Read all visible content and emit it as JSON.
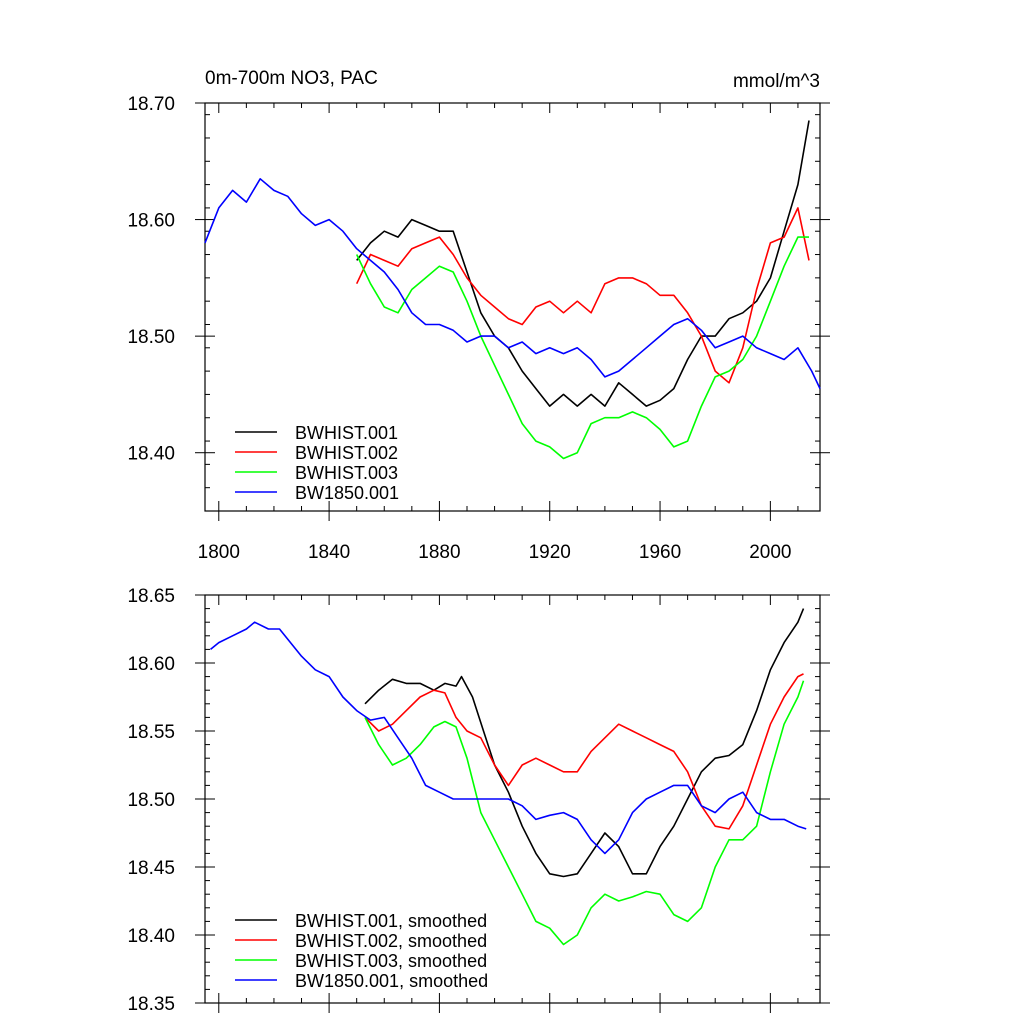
{
  "chart_data": [
    {
      "type": "line",
      "title": "0m-700m NO3, PAC",
      "units": "mmol/m^3",
      "xlim": [
        1795,
        2018
      ],
      "ylim": [
        18.35,
        18.7
      ],
      "x_ticks": [
        1800,
        1840,
        1880,
        1920,
        1960,
        2000
      ],
      "x_tick_labels": [
        "1800",
        "1840",
        "1880",
        "1920",
        "1960",
        "2000"
      ],
      "y_ticks": [
        18.4,
        18.5,
        18.6,
        18.7
      ],
      "y_tick_labels": [
        "18.40",
        "18.50",
        "18.60",
        "18.70"
      ],
      "legend_position": "bottom-left",
      "series": [
        {
          "name": "BWHIST.001",
          "color": "#000000",
          "x": [
            1850,
            1855,
            1860,
            1865,
            1870,
            1875,
            1880,
            1885,
            1890,
            1895,
            1900,
            1905,
            1910,
            1915,
            1920,
            1925,
            1930,
            1935,
            1940,
            1945,
            1950,
            1955,
            1960,
            1965,
            1970,
            1975,
            1980,
            1985,
            1990,
            1995,
            2000,
            2005,
            2010,
            2014
          ],
          "y": [
            18.565,
            18.58,
            18.59,
            18.585,
            18.6,
            18.595,
            18.59,
            18.59,
            18.555,
            18.52,
            18.5,
            18.49,
            18.47,
            18.455,
            18.44,
            18.45,
            18.44,
            18.45,
            18.44,
            18.46,
            18.45,
            18.44,
            18.445,
            18.455,
            18.48,
            18.5,
            18.5,
            18.515,
            18.52,
            18.53,
            18.55,
            18.59,
            18.63,
            18.685
          ]
        },
        {
          "name": "BWHIST.002",
          "color": "#ff0000",
          "x": [
            1850,
            1855,
            1860,
            1865,
            1870,
            1875,
            1880,
            1885,
            1890,
            1895,
            1900,
            1905,
            1910,
            1915,
            1920,
            1925,
            1930,
            1935,
            1940,
            1945,
            1950,
            1955,
            1960,
            1965,
            1970,
            1975,
            1980,
            1985,
            1990,
            1995,
            2000,
            2005,
            2010,
            2014
          ],
          "y": [
            18.545,
            18.57,
            18.565,
            18.56,
            18.575,
            18.58,
            18.585,
            18.57,
            18.55,
            18.535,
            18.525,
            18.515,
            18.51,
            18.525,
            18.53,
            18.52,
            18.53,
            18.52,
            18.545,
            18.55,
            18.55,
            18.545,
            18.535,
            18.535,
            18.52,
            18.5,
            18.47,
            18.46,
            18.49,
            18.54,
            18.58,
            18.585,
            18.61,
            18.565
          ]
        },
        {
          "name": "BWHIST.003",
          "color": "#00ff00",
          "x": [
            1850,
            1855,
            1860,
            1865,
            1870,
            1875,
            1880,
            1885,
            1890,
            1895,
            1900,
            1905,
            1910,
            1915,
            1920,
            1925,
            1930,
            1935,
            1940,
            1945,
            1950,
            1955,
            1960,
            1965,
            1970,
            1975,
            1980,
            1985,
            1990,
            1995,
            2000,
            2005,
            2010,
            2014
          ],
          "y": [
            18.57,
            18.545,
            18.525,
            18.52,
            18.54,
            18.55,
            18.56,
            18.555,
            18.53,
            18.5,
            18.475,
            18.45,
            18.425,
            18.41,
            18.405,
            18.395,
            18.4,
            18.425,
            18.43,
            18.43,
            18.435,
            18.43,
            18.42,
            18.405,
            18.41,
            18.44,
            18.465,
            18.47,
            18.48,
            18.5,
            18.53,
            18.56,
            18.585,
            18.585
          ]
        },
        {
          "name": "BW1850.001",
          "color": "#0000ff",
          "x": [
            1795,
            1800,
            1805,
            1810,
            1815,
            1820,
            1825,
            1830,
            1835,
            1840,
            1845,
            1850,
            1855,
            1860,
            1865,
            1870,
            1875,
            1880,
            1885,
            1890,
            1895,
            1900,
            1905,
            1910,
            1915,
            1920,
            1925,
            1930,
            1935,
            1940,
            1945,
            1950,
            1955,
            1960,
            1965,
            1970,
            1975,
            1980,
            1985,
            1990,
            1995,
            2000,
            2005,
            2010,
            2015,
            2018
          ],
          "y": [
            18.58,
            18.61,
            18.625,
            18.615,
            18.635,
            18.625,
            18.62,
            18.605,
            18.595,
            18.6,
            18.59,
            18.575,
            18.565,
            18.555,
            18.54,
            18.52,
            18.51,
            18.51,
            18.505,
            18.495,
            18.5,
            18.5,
            18.49,
            18.495,
            18.485,
            18.49,
            18.485,
            18.49,
            18.48,
            18.465,
            18.47,
            18.48,
            18.49,
            18.5,
            18.51,
            18.515,
            18.505,
            18.49,
            18.495,
            18.5,
            18.49,
            18.485,
            18.48,
            18.49,
            18.47,
            18.455
          ]
        }
      ]
    },
    {
      "type": "line",
      "xlim": [
        1795,
        2018
      ],
      "ylim": [
        18.35,
        18.65
      ],
      "x_ticks": [
        1800,
        1840,
        1880,
        1920,
        1960,
        2000
      ],
      "y_ticks": [
        18.35,
        18.4,
        18.45,
        18.5,
        18.55,
        18.6,
        18.65
      ],
      "y_tick_labels": [
        "18.35",
        "18.40",
        "18.45",
        "18.50",
        "18.55",
        "18.60",
        "18.65"
      ],
      "legend_position": "bottom-left",
      "series": [
        {
          "name": "BWHIST.001, smoothed",
          "color": "#000000",
          "x": [
            1853,
            1858,
            1863,
            1868,
            1873,
            1878,
            1882,
            1886,
            1888,
            1892,
            1896,
            1900,
            1905,
            1910,
            1915,
            1920,
            1925,
            1930,
            1935,
            1940,
            1945,
            1950,
            1955,
            1960,
            1965,
            1970,
            1975,
            1980,
            1985,
            1990,
            1995,
            2000,
            2005,
            2010,
            2012
          ],
          "y": [
            18.57,
            18.58,
            18.588,
            18.585,
            18.585,
            18.58,
            18.585,
            18.583,
            18.59,
            18.575,
            18.55,
            18.525,
            18.505,
            18.48,
            18.46,
            18.445,
            18.443,
            18.445,
            18.46,
            18.475,
            18.465,
            18.445,
            18.445,
            18.465,
            18.48,
            18.5,
            18.52,
            18.53,
            18.532,
            18.54,
            18.565,
            18.595,
            18.615,
            18.63,
            18.64
          ]
        },
        {
          "name": "BWHIST.002, smoothed",
          "color": "#ff0000",
          "x": [
            1853,
            1858,
            1863,
            1868,
            1873,
            1878,
            1882,
            1886,
            1890,
            1895,
            1900,
            1905,
            1910,
            1915,
            1920,
            1925,
            1930,
            1935,
            1940,
            1945,
            1950,
            1955,
            1960,
            1965,
            1970,
            1975,
            1980,
            1985,
            1990,
            1995,
            2000,
            2005,
            2010,
            2012
          ],
          "y": [
            18.56,
            18.55,
            18.555,
            18.565,
            18.575,
            18.58,
            18.578,
            18.56,
            18.55,
            18.545,
            18.525,
            18.51,
            18.525,
            18.53,
            18.525,
            18.52,
            18.52,
            18.535,
            18.545,
            18.555,
            18.55,
            18.545,
            18.54,
            18.535,
            18.52,
            18.495,
            18.48,
            18.478,
            18.495,
            18.525,
            18.555,
            18.575,
            18.59,
            18.592
          ]
        },
        {
          "name": "BWHIST.003, smoothed",
          "color": "#00ff00",
          "x": [
            1853,
            1858,
            1863,
            1868,
            1873,
            1878,
            1882,
            1886,
            1890,
            1895,
            1900,
            1905,
            1910,
            1915,
            1920,
            1925,
            1930,
            1935,
            1940,
            1945,
            1950,
            1955,
            1960,
            1965,
            1970,
            1975,
            1980,
            1985,
            1990,
            1995,
            2000,
            2005,
            2010,
            2012
          ],
          "y": [
            18.56,
            18.54,
            18.525,
            18.53,
            18.54,
            18.553,
            18.557,
            18.553,
            18.53,
            18.49,
            18.47,
            18.45,
            18.43,
            18.41,
            18.405,
            18.393,
            18.4,
            18.42,
            18.43,
            18.425,
            18.428,
            18.432,
            18.43,
            18.415,
            18.41,
            18.42,
            18.45,
            18.47,
            18.47,
            18.48,
            18.52,
            18.555,
            18.575,
            18.587
          ]
        },
        {
          "name": "BW1850.001, smoothed",
          "color": "#0000ff",
          "x": [
            1797,
            1800,
            1805,
            1810,
            1813,
            1818,
            1822,
            1826,
            1830,
            1835,
            1840,
            1845,
            1850,
            1855,
            1860,
            1865,
            1870,
            1875,
            1880,
            1885,
            1890,
            1895,
            1900,
            1905,
            1910,
            1915,
            1920,
            1925,
            1930,
            1935,
            1940,
            1945,
            1950,
            1955,
            1960,
            1965,
            1970,
            1975,
            1980,
            1985,
            1990,
            1995,
            2000,
            2005,
            2010,
            2013
          ],
          "y": [
            18.61,
            18.615,
            18.62,
            18.625,
            18.63,
            18.625,
            18.625,
            18.615,
            18.605,
            18.595,
            18.59,
            18.575,
            18.565,
            18.558,
            18.56,
            18.545,
            18.53,
            18.51,
            18.505,
            18.5,
            18.5,
            18.5,
            18.5,
            18.5,
            18.495,
            18.485,
            18.488,
            18.49,
            18.485,
            18.47,
            18.46,
            18.47,
            18.49,
            18.5,
            18.505,
            18.51,
            18.51,
            18.495,
            18.49,
            18.5,
            18.505,
            18.49,
            18.485,
            18.485,
            18.48,
            18.478
          ]
        }
      ]
    }
  ]
}
